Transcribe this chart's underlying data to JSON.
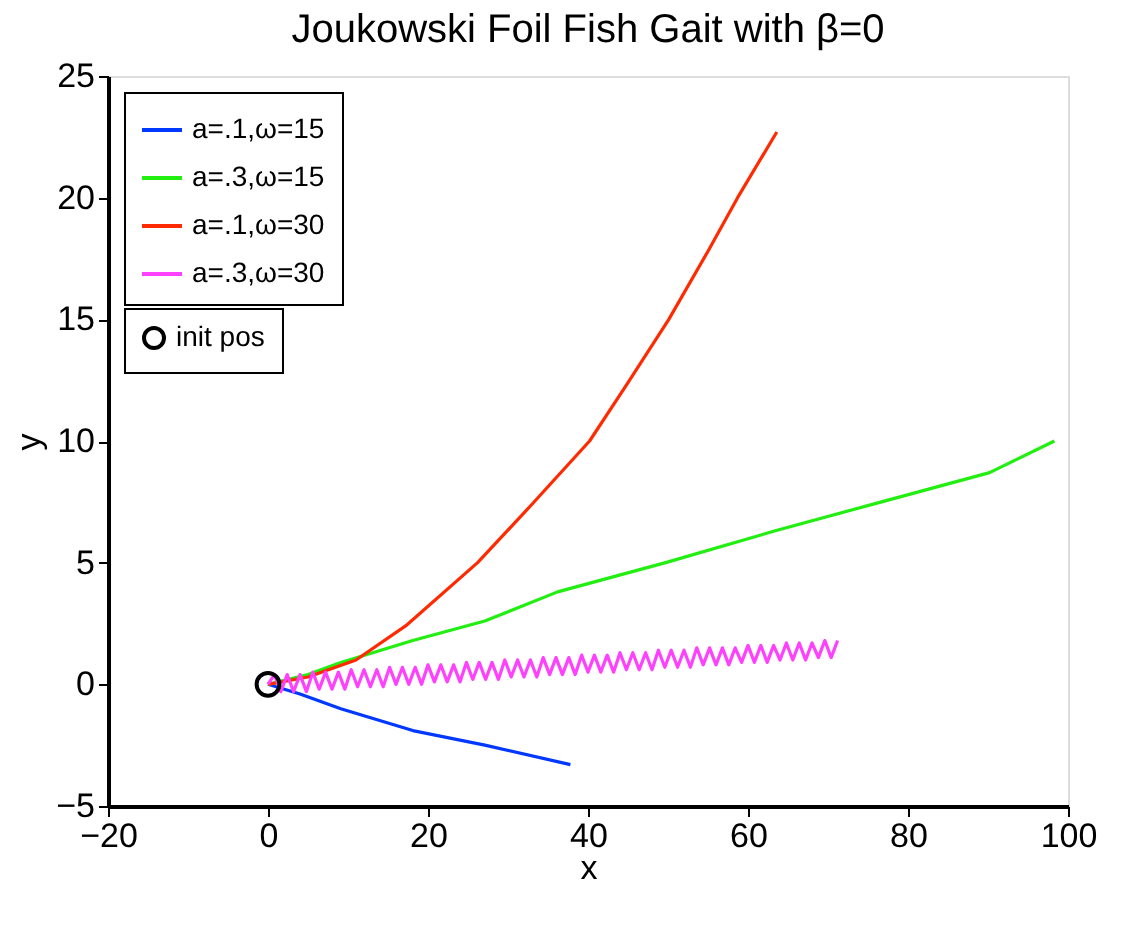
{
  "chart_data": {
    "type": "line",
    "title": "Joukowski Foil Fish Gait with β=0",
    "xlabel": "x",
    "ylabel": "y",
    "xlim": [
      -20,
      100
    ],
    "xticks": [
      -20,
      0,
      20,
      40,
      60,
      80,
      100
    ],
    "ylim": [
      -5,
      25
    ],
    "yticks": [
      -5,
      0,
      5,
      10,
      15,
      20,
      25
    ],
    "grid": false,
    "legend": "top left",
    "line_style": "solid",
    "series": [
      {
        "name": "a=.1,ω=15",
        "color": "#0038ff",
        "x": [
          0,
          4,
          9.1,
          18.1,
          27.1,
          37.8
        ],
        "values": [
          0,
          -0.4,
          -1.0,
          -1.9,
          -2.5,
          -3.3
        ]
      },
      {
        "name": "a=.3,ω=15",
        "color": "#22ee11",
        "x": [
          0,
          5,
          9.1,
          18.1,
          27.1,
          36.2,
          49.7,
          63.3,
          76.7,
          90.2,
          98.3
        ],
        "values": [
          0,
          0.4,
          0.9,
          1.8,
          2.6,
          3.8,
          5.0,
          6.3,
          7.5,
          8.7,
          10.0
        ]
      },
      {
        "name": "a=.1,ω=30",
        "color": "#ff2a00",
        "x": [
          0,
          5,
          11,
          17.2,
          26.2,
          33,
          40.2,
          45,
          50.1,
          55,
          58.7,
          63.6
        ],
        "values": [
          0,
          0.3,
          1,
          2.4,
          5,
          7.4,
          10,
          12.4,
          15,
          17.8,
          20,
          22.7
        ]
      },
      {
        "name": "a=.3,ω=30",
        "color": "#ff40ff",
        "x": [
          0,
          0.8,
          1.6,
          2.4,
          3.2,
          4.0,
          4.8,
          5.6,
          6.4,
          7.2,
          8.0,
          8.8,
          9.6,
          10.4,
          11.2,
          12.0,
          12.8,
          13.6,
          14.4,
          15.2,
          16.0,
          16.8,
          17.6,
          18.4,
          19.2,
          20.0,
          20.8,
          21.6,
          22.4,
          23.2,
          24.0,
          24.8,
          25.6,
          26.4,
          27.2,
          28.0,
          28.8,
          29.6,
          30.4,
          31.2,
          32.0,
          32.8,
          33.6,
          34.4,
          35.2,
          36.0,
          36.8,
          37.6,
          38.4,
          39.2,
          40.0,
          40.8,
          41.6,
          42.4,
          43.2,
          44.0,
          44.8,
          45.6,
          46.4,
          47.2,
          48.0,
          48.8,
          49.6,
          50.4,
          51.2,
          52.0,
          52.8,
          53.6,
          54.4,
          55.2,
          56.0,
          56.8,
          57.6,
          58.4,
          59.2,
          60.0,
          60.8,
          61.6,
          62.4,
          63.2,
          64.0,
          64.8,
          65.6,
          66.4,
          67.2,
          68.0,
          68.8,
          69.6,
          70.4,
          71.2
        ],
        "values": [
          0,
          0.4,
          -0.3,
          0.4,
          -0.3,
          0.4,
          -0.3,
          0.5,
          -0.2,
          0.5,
          -0.2,
          0.5,
          -0.2,
          0.6,
          -0.1,
          0.6,
          -0.1,
          0.6,
          -0.1,
          0.7,
          0.0,
          0.7,
          0.0,
          0.7,
          0.0,
          0.8,
          0.1,
          0.8,
          0.1,
          0.8,
          0.1,
          0.9,
          0.2,
          0.9,
          0.2,
          0.9,
          0.2,
          1.0,
          0.3,
          1.0,
          0.3,
          1.0,
          0.3,
          1.1,
          0.4,
          1.1,
          0.4,
          1.1,
          0.4,
          1.2,
          0.5,
          1.2,
          0.5,
          1.2,
          0.5,
          1.3,
          0.6,
          1.3,
          0.6,
          1.3,
          0.6,
          1.4,
          0.7,
          1.4,
          0.7,
          1.4,
          0.7,
          1.5,
          0.8,
          1.5,
          0.8,
          1.5,
          0.8,
          1.5,
          0.9,
          1.6,
          0.9,
          1.6,
          0.9,
          1.6,
          1.0,
          1.7,
          1.0,
          1.7,
          1.0,
          1.7,
          1.1,
          1.8,
          1.1,
          1.8
        ]
      },
      {
        "name": "init pos",
        "type": "scatter",
        "marker": "circle",
        "color": "#000000",
        "x": [
          0
        ],
        "values": [
          0
        ]
      }
    ]
  }
}
